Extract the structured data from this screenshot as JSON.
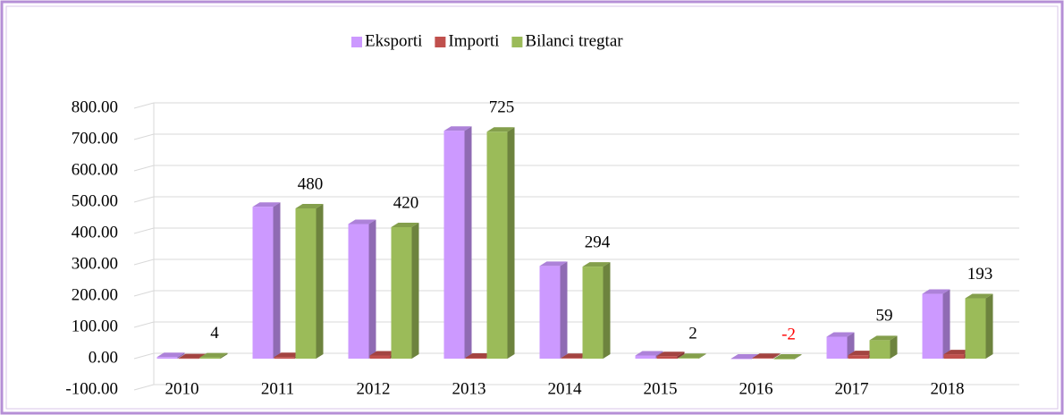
{
  "chart_data": {
    "type": "bar3d",
    "categories": [
      "2010",
      "2011",
      "2012",
      "2013",
      "2014",
      "2015",
      "2016",
      "2017",
      "2018"
    ],
    "series": [
      {
        "name": "Eksporti",
        "color": "#cc99ff",
        "values": [
          5,
          485,
          430,
          728,
          296,
          10,
          0,
          70,
          207
        ]
      },
      {
        "name": "Importi",
        "color": "#c0504d",
        "values": [
          1,
          5,
          10,
          3,
          2,
          8,
          2,
          11,
          14
        ]
      },
      {
        "name": "Bilanci tregtar",
        "color": "#9bbb59",
        "values": [
          4,
          480,
          420,
          725,
          294,
          2,
          -2,
          59,
          193
        ],
        "show_labels": true
      }
    ],
    "negative_label_color": "#ff0000",
    "ylim": [
      -100,
      800
    ],
    "yticks": [
      {
        "value": -100,
        "label": "-100.00"
      },
      {
        "value": 0,
        "label": "0.00"
      },
      {
        "value": 100,
        "label": "100.00"
      },
      {
        "value": 200,
        "label": "200.00"
      },
      {
        "value": 300,
        "label": "300.00"
      },
      {
        "value": 400,
        "label": "400.00"
      },
      {
        "value": 500,
        "label": "500.00"
      },
      {
        "value": 600,
        "label": "600.00"
      },
      {
        "value": 700,
        "label": "700.00"
      },
      {
        "value": 800,
        "label": "800.00"
      }
    ],
    "grid": true,
    "legend": "top"
  }
}
